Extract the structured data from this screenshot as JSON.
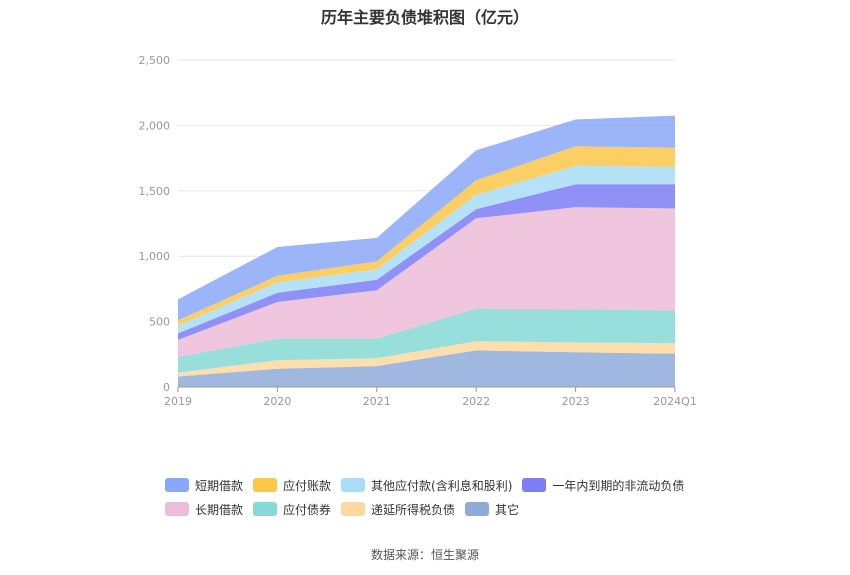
{
  "chart_data": {
    "type": "area",
    "stacked": true,
    "title": "历年主要负债堆积图（亿元）",
    "categories": [
      "2019",
      "2020",
      "2021",
      "2022",
      "2023",
      "2024Q1"
    ],
    "ylim": [
      0,
      2500
    ],
    "yticks": [
      0,
      500,
      1000,
      1500,
      2000,
      2500
    ],
    "ytick_labels": [
      "0",
      "500",
      "1,000",
      "1,500",
      "2,000",
      "2,500"
    ],
    "grid": true,
    "legend_position": "bottom",
    "series": [
      {
        "name": "其它",
        "color": "#8fabd9",
        "values": [
          80,
          140,
          160,
          280,
          265,
          255
        ]
      },
      {
        "name": "递延所得税负债",
        "color": "#fdd9a0",
        "values": [
          30,
          65,
          60,
          70,
          75,
          80
        ]
      },
      {
        "name": "应付债券",
        "color": "#86d9d6",
        "values": [
          120,
          165,
          150,
          250,
          255,
          250
        ]
      },
      {
        "name": "长期借款",
        "color": "#ecbcd8",
        "values": [
          130,
          280,
          370,
          690,
          780,
          780
        ]
      },
      {
        "name": "一年内到期的非流动负债",
        "color": "#7b7ef5",
        "values": [
          50,
          70,
          80,
          70,
          175,
          185
        ]
      },
      {
        "name": "其他应付款(含利息和股利)",
        "color": "#a9ddf7",
        "values": [
          60,
          80,
          80,
          110,
          140,
          135
        ]
      },
      {
        "name": "应付账款",
        "color": "#fcc74a",
        "values": [
          40,
          50,
          60,
          110,
          150,
          145
        ]
      },
      {
        "name": "短期借款",
        "color": "#89a8f7",
        "values": [
          160,
          220,
          180,
          230,
          205,
          245
        ]
      }
    ]
  },
  "legend_rows": [
    [
      {
        "name": "短期借款",
        "color": "#89a8f7"
      },
      {
        "name": "应付账款",
        "color": "#fcc74a"
      },
      {
        "name": "其他应付款(含利息和股利)",
        "color": "#a9ddf7"
      },
      {
        "name": "一年内到期的非流动负债",
        "color": "#7b7ef5"
      }
    ],
    [
      {
        "name": "长期借款",
        "color": "#ecbcd8"
      },
      {
        "name": "应付债券",
        "color": "#86d9d6"
      },
      {
        "name": "递延所得税负债",
        "color": "#fdd9a0"
      },
      {
        "name": "其它",
        "color": "#8fabd9"
      }
    ]
  ],
  "source": "数据来源：恒生聚源"
}
